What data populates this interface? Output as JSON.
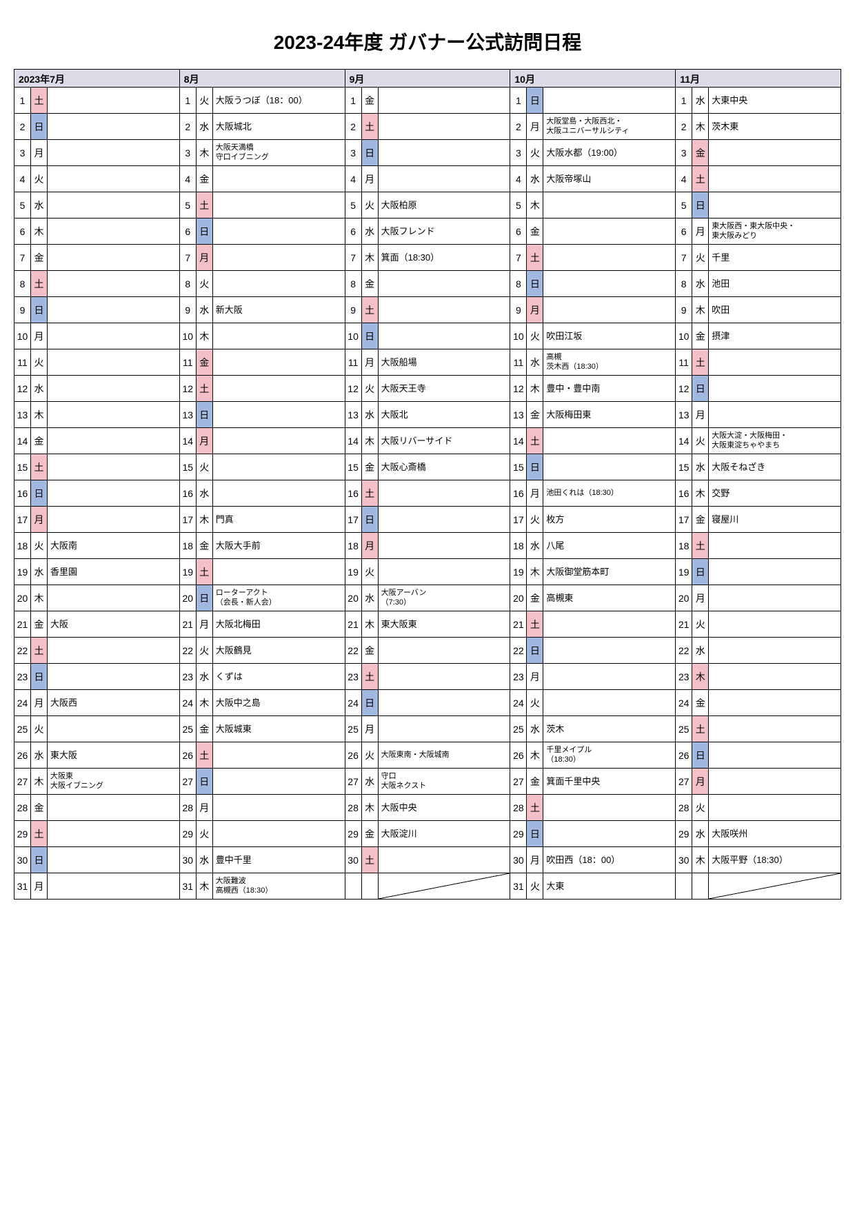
{
  "title": "2023-24年度 ガバナー公式訪問日程",
  "colors": {
    "header_bg": "#dcdce8",
    "sat_bg": "#f4c0c8",
    "sun_bg": "#a0b8e0",
    "border": "#000000"
  },
  "months": [
    {
      "label": "2023年7月",
      "days": [
        {
          "n": 1,
          "dow": "土",
          "cls": "sat",
          "ev": ""
        },
        {
          "n": 2,
          "dow": "日",
          "cls": "sun",
          "ev": ""
        },
        {
          "n": 3,
          "dow": "月",
          "cls": "",
          "ev": ""
        },
        {
          "n": 4,
          "dow": "火",
          "cls": "",
          "ev": ""
        },
        {
          "n": 5,
          "dow": "水",
          "cls": "",
          "ev": ""
        },
        {
          "n": 6,
          "dow": "木",
          "cls": "",
          "ev": ""
        },
        {
          "n": 7,
          "dow": "金",
          "cls": "",
          "ev": ""
        },
        {
          "n": 8,
          "dow": "土",
          "cls": "sat",
          "ev": ""
        },
        {
          "n": 9,
          "dow": "日",
          "cls": "sun",
          "ev": ""
        },
        {
          "n": 10,
          "dow": "月",
          "cls": "",
          "ev": ""
        },
        {
          "n": 11,
          "dow": "火",
          "cls": "",
          "ev": ""
        },
        {
          "n": 12,
          "dow": "水",
          "cls": "",
          "ev": ""
        },
        {
          "n": 13,
          "dow": "木",
          "cls": "",
          "ev": ""
        },
        {
          "n": 14,
          "dow": "金",
          "cls": "",
          "ev": ""
        },
        {
          "n": 15,
          "dow": "土",
          "cls": "sat",
          "ev": ""
        },
        {
          "n": 16,
          "dow": "日",
          "cls": "sun",
          "ev": ""
        },
        {
          "n": 17,
          "dow": "月",
          "cls": "hol",
          "ev": ""
        },
        {
          "n": 18,
          "dow": "火",
          "cls": "",
          "ev": "大阪南"
        },
        {
          "n": 19,
          "dow": "水",
          "cls": "",
          "ev": "香里園"
        },
        {
          "n": 20,
          "dow": "木",
          "cls": "",
          "ev": ""
        },
        {
          "n": 21,
          "dow": "金",
          "cls": "",
          "ev": "大阪"
        },
        {
          "n": 22,
          "dow": "土",
          "cls": "sat",
          "ev": ""
        },
        {
          "n": 23,
          "dow": "日",
          "cls": "sun",
          "ev": ""
        },
        {
          "n": 24,
          "dow": "月",
          "cls": "",
          "ev": "大阪西"
        },
        {
          "n": 25,
          "dow": "火",
          "cls": "",
          "ev": ""
        },
        {
          "n": 26,
          "dow": "水",
          "cls": "",
          "ev": "東大阪"
        },
        {
          "n": 27,
          "dow": "木",
          "cls": "",
          "ev": "大阪東\n大阪イブニング",
          "small": true
        },
        {
          "n": 28,
          "dow": "金",
          "cls": "",
          "ev": ""
        },
        {
          "n": 29,
          "dow": "土",
          "cls": "sat",
          "ev": ""
        },
        {
          "n": 30,
          "dow": "日",
          "cls": "sun",
          "ev": ""
        },
        {
          "n": 31,
          "dow": "月",
          "cls": "",
          "ev": ""
        }
      ]
    },
    {
      "label": "8月",
      "days": [
        {
          "n": 1,
          "dow": "火",
          "cls": "",
          "ev": "大阪うつぼ（18：00）"
        },
        {
          "n": 2,
          "dow": "水",
          "cls": "",
          "ev": "大阪城北"
        },
        {
          "n": 3,
          "dow": "木",
          "cls": "",
          "ev": "大阪天満橋\n守口イブニング",
          "small": true
        },
        {
          "n": 4,
          "dow": "金",
          "cls": "",
          "ev": ""
        },
        {
          "n": 5,
          "dow": "土",
          "cls": "sat",
          "ev": ""
        },
        {
          "n": 6,
          "dow": "日",
          "cls": "sun",
          "ev": ""
        },
        {
          "n": 7,
          "dow": "月",
          "cls": "hol",
          "ev": ""
        },
        {
          "n": 8,
          "dow": "火",
          "cls": "",
          "ev": ""
        },
        {
          "n": 9,
          "dow": "水",
          "cls": "",
          "ev": "新大阪"
        },
        {
          "n": 10,
          "dow": "木",
          "cls": "",
          "ev": ""
        },
        {
          "n": 11,
          "dow": "金",
          "cls": "hol",
          "ev": ""
        },
        {
          "n": 12,
          "dow": "土",
          "cls": "sat",
          "ev": ""
        },
        {
          "n": 13,
          "dow": "日",
          "cls": "sun",
          "ev": ""
        },
        {
          "n": 14,
          "dow": "月",
          "cls": "hol",
          "ev": ""
        },
        {
          "n": 15,
          "dow": "火",
          "cls": "",
          "ev": ""
        },
        {
          "n": 16,
          "dow": "水",
          "cls": "",
          "ev": ""
        },
        {
          "n": 17,
          "dow": "木",
          "cls": "",
          "ev": "門真"
        },
        {
          "n": 18,
          "dow": "金",
          "cls": "",
          "ev": "大阪大手前"
        },
        {
          "n": 19,
          "dow": "土",
          "cls": "sat",
          "ev": ""
        },
        {
          "n": 20,
          "dow": "日",
          "cls": "sun",
          "ev": "ローターアクト\n（会長・新人会）",
          "small": true
        },
        {
          "n": 21,
          "dow": "月",
          "cls": "",
          "ev": "大阪北梅田"
        },
        {
          "n": 22,
          "dow": "火",
          "cls": "",
          "ev": "大阪鶴見"
        },
        {
          "n": 23,
          "dow": "水",
          "cls": "",
          "ev": "くずは"
        },
        {
          "n": 24,
          "dow": "木",
          "cls": "",
          "ev": "大阪中之島"
        },
        {
          "n": 25,
          "dow": "金",
          "cls": "",
          "ev": "大阪城東"
        },
        {
          "n": 26,
          "dow": "土",
          "cls": "sat",
          "ev": ""
        },
        {
          "n": 27,
          "dow": "日",
          "cls": "sun",
          "ev": ""
        },
        {
          "n": 28,
          "dow": "月",
          "cls": "",
          "ev": ""
        },
        {
          "n": 29,
          "dow": "火",
          "cls": "",
          "ev": ""
        },
        {
          "n": 30,
          "dow": "水",
          "cls": "",
          "ev": "豊中千里"
        },
        {
          "n": 31,
          "dow": "木",
          "cls": "",
          "ev": "大阪難波\n高槻西（18:30）",
          "small": true
        }
      ]
    },
    {
      "label": "9月",
      "days": [
        {
          "n": 1,
          "dow": "金",
          "cls": "",
          "ev": ""
        },
        {
          "n": 2,
          "dow": "土",
          "cls": "sat",
          "ev": ""
        },
        {
          "n": 3,
          "dow": "日",
          "cls": "sun",
          "ev": ""
        },
        {
          "n": 4,
          "dow": "月",
          "cls": "",
          "ev": ""
        },
        {
          "n": 5,
          "dow": "火",
          "cls": "",
          "ev": "大阪柏原"
        },
        {
          "n": 6,
          "dow": "水",
          "cls": "",
          "ev": "大阪フレンド"
        },
        {
          "n": 7,
          "dow": "木",
          "cls": "",
          "ev": "箕面（18:30）"
        },
        {
          "n": 8,
          "dow": "金",
          "cls": "",
          "ev": ""
        },
        {
          "n": 9,
          "dow": "土",
          "cls": "sat",
          "ev": ""
        },
        {
          "n": 10,
          "dow": "日",
          "cls": "sun",
          "ev": ""
        },
        {
          "n": 11,
          "dow": "月",
          "cls": "",
          "ev": "大阪船場"
        },
        {
          "n": 12,
          "dow": "火",
          "cls": "",
          "ev": "大阪天王寺"
        },
        {
          "n": 13,
          "dow": "水",
          "cls": "",
          "ev": "大阪北"
        },
        {
          "n": 14,
          "dow": "木",
          "cls": "",
          "ev": "大阪リバーサイド"
        },
        {
          "n": 15,
          "dow": "金",
          "cls": "",
          "ev": "大阪心斎橋"
        },
        {
          "n": 16,
          "dow": "土",
          "cls": "sat",
          "ev": ""
        },
        {
          "n": 17,
          "dow": "日",
          "cls": "sun",
          "ev": ""
        },
        {
          "n": 18,
          "dow": "月",
          "cls": "hol",
          "ev": ""
        },
        {
          "n": 19,
          "dow": "火",
          "cls": "",
          "ev": ""
        },
        {
          "n": 20,
          "dow": "水",
          "cls": "",
          "ev": "大阪アーバン\n（7:30）",
          "small": true
        },
        {
          "n": 21,
          "dow": "木",
          "cls": "",
          "ev": "東大阪東"
        },
        {
          "n": 22,
          "dow": "金",
          "cls": "",
          "ev": ""
        },
        {
          "n": 23,
          "dow": "土",
          "cls": "sat",
          "ev": ""
        },
        {
          "n": 24,
          "dow": "日",
          "cls": "sun",
          "ev": ""
        },
        {
          "n": 25,
          "dow": "月",
          "cls": "",
          "ev": ""
        },
        {
          "n": 26,
          "dow": "火",
          "cls": "",
          "ev": "大阪東南・大阪城南",
          "small": true
        },
        {
          "n": 27,
          "dow": "水",
          "cls": "",
          "ev": "守口\n大阪ネクスト",
          "small": true
        },
        {
          "n": 28,
          "dow": "木",
          "cls": "",
          "ev": "大阪中央"
        },
        {
          "n": 29,
          "dow": "金",
          "cls": "",
          "ev": "大阪淀川"
        },
        {
          "n": 30,
          "dow": "土",
          "cls": "sat",
          "ev": ""
        },
        {
          "n": "",
          "dow": "",
          "cls": "",
          "ev": "",
          "diag": true
        }
      ]
    },
    {
      "label": "10月",
      "days": [
        {
          "n": 1,
          "dow": "日",
          "cls": "sun",
          "ev": ""
        },
        {
          "n": 2,
          "dow": "月",
          "cls": "",
          "ev": "大阪堂島・大阪西北・\n大阪ユニバーサルシティ",
          "small": true
        },
        {
          "n": 3,
          "dow": "火",
          "cls": "",
          "ev": "大阪水都（19:00）"
        },
        {
          "n": 4,
          "dow": "水",
          "cls": "",
          "ev": "大阪帝塚山"
        },
        {
          "n": 5,
          "dow": "木",
          "cls": "",
          "ev": ""
        },
        {
          "n": 6,
          "dow": "金",
          "cls": "",
          "ev": ""
        },
        {
          "n": 7,
          "dow": "土",
          "cls": "sat",
          "ev": ""
        },
        {
          "n": 8,
          "dow": "日",
          "cls": "sun",
          "ev": ""
        },
        {
          "n": 9,
          "dow": "月",
          "cls": "hol",
          "ev": ""
        },
        {
          "n": 10,
          "dow": "火",
          "cls": "",
          "ev": "吹田江坂"
        },
        {
          "n": 11,
          "dow": "水",
          "cls": "",
          "ev": "高槻\n茨木西（18:30）",
          "small": true
        },
        {
          "n": 12,
          "dow": "木",
          "cls": "",
          "ev": "豊中・豊中南"
        },
        {
          "n": 13,
          "dow": "金",
          "cls": "",
          "ev": "大阪梅田東"
        },
        {
          "n": 14,
          "dow": "土",
          "cls": "sat",
          "ev": ""
        },
        {
          "n": 15,
          "dow": "日",
          "cls": "sun",
          "ev": ""
        },
        {
          "n": 16,
          "dow": "月",
          "cls": "",
          "ev": "池田くれは（18:30）",
          "small": true
        },
        {
          "n": 17,
          "dow": "火",
          "cls": "",
          "ev": "枚方"
        },
        {
          "n": 18,
          "dow": "水",
          "cls": "",
          "ev": "八尾"
        },
        {
          "n": 19,
          "dow": "木",
          "cls": "",
          "ev": "大阪御堂筋本町"
        },
        {
          "n": 20,
          "dow": "金",
          "cls": "",
          "ev": "高槻東"
        },
        {
          "n": 21,
          "dow": "土",
          "cls": "sat",
          "ev": ""
        },
        {
          "n": 22,
          "dow": "日",
          "cls": "sun",
          "ev": ""
        },
        {
          "n": 23,
          "dow": "月",
          "cls": "",
          "ev": ""
        },
        {
          "n": 24,
          "dow": "火",
          "cls": "",
          "ev": ""
        },
        {
          "n": 25,
          "dow": "水",
          "cls": "",
          "ev": "茨木"
        },
        {
          "n": 26,
          "dow": "木",
          "cls": "",
          "ev": "千里メイプル\n（18:30）",
          "small": true
        },
        {
          "n": 27,
          "dow": "金",
          "cls": "",
          "ev": "箕面千里中央"
        },
        {
          "n": 28,
          "dow": "土",
          "cls": "sat",
          "ev": ""
        },
        {
          "n": 29,
          "dow": "日",
          "cls": "sun",
          "ev": ""
        },
        {
          "n": 30,
          "dow": "月",
          "cls": "",
          "ev": "吹田西（18：00）"
        },
        {
          "n": 31,
          "dow": "火",
          "cls": "",
          "ev": "大東"
        }
      ]
    },
    {
      "label": "11月",
      "days": [
        {
          "n": 1,
          "dow": "水",
          "cls": "",
          "ev": "大東中央"
        },
        {
          "n": 2,
          "dow": "木",
          "cls": "",
          "ev": "茨木東"
        },
        {
          "n": 3,
          "dow": "金",
          "cls": "hol",
          "ev": ""
        },
        {
          "n": 4,
          "dow": "土",
          "cls": "sat",
          "ev": ""
        },
        {
          "n": 5,
          "dow": "日",
          "cls": "sun",
          "ev": ""
        },
        {
          "n": 6,
          "dow": "月",
          "cls": "",
          "ev": "東大阪西・東大阪中央・\n東大阪みどり",
          "small": true
        },
        {
          "n": 7,
          "dow": "火",
          "cls": "",
          "ev": "千里"
        },
        {
          "n": 8,
          "dow": "水",
          "cls": "",
          "ev": "池田"
        },
        {
          "n": 9,
          "dow": "木",
          "cls": "",
          "ev": "吹田"
        },
        {
          "n": 10,
          "dow": "金",
          "cls": "",
          "ev": "摂津"
        },
        {
          "n": 11,
          "dow": "土",
          "cls": "sat",
          "ev": ""
        },
        {
          "n": 12,
          "dow": "日",
          "cls": "sun",
          "ev": ""
        },
        {
          "n": 13,
          "dow": "月",
          "cls": "",
          "ev": ""
        },
        {
          "n": 14,
          "dow": "火",
          "cls": "",
          "ev": "大阪大淀・大阪梅田・\n大阪東淀ちゃやまち",
          "small": true
        },
        {
          "n": 15,
          "dow": "水",
          "cls": "",
          "ev": "大阪そねざき"
        },
        {
          "n": 16,
          "dow": "木",
          "cls": "",
          "ev": "交野"
        },
        {
          "n": 17,
          "dow": "金",
          "cls": "",
          "ev": "寝屋川"
        },
        {
          "n": 18,
          "dow": "土",
          "cls": "sat",
          "ev": ""
        },
        {
          "n": 19,
          "dow": "日",
          "cls": "sun",
          "ev": ""
        },
        {
          "n": 20,
          "dow": "月",
          "cls": "",
          "ev": ""
        },
        {
          "n": 21,
          "dow": "火",
          "cls": "",
          "ev": ""
        },
        {
          "n": 22,
          "dow": "水",
          "cls": "",
          "ev": ""
        },
        {
          "n": 23,
          "dow": "木",
          "cls": "hol",
          "ev": ""
        },
        {
          "n": 24,
          "dow": "金",
          "cls": "",
          "ev": ""
        },
        {
          "n": 25,
          "dow": "土",
          "cls": "sat",
          "ev": ""
        },
        {
          "n": 26,
          "dow": "日",
          "cls": "sun",
          "ev": ""
        },
        {
          "n": 27,
          "dow": "月",
          "cls": "hol",
          "ev": ""
        },
        {
          "n": 28,
          "dow": "火",
          "cls": "",
          "ev": ""
        },
        {
          "n": 29,
          "dow": "水",
          "cls": "",
          "ev": "大阪咲州"
        },
        {
          "n": 30,
          "dow": "木",
          "cls": "",
          "ev": "大阪平野（18:30）"
        },
        {
          "n": "",
          "dow": "",
          "cls": "",
          "ev": "",
          "diag": true
        }
      ]
    }
  ]
}
